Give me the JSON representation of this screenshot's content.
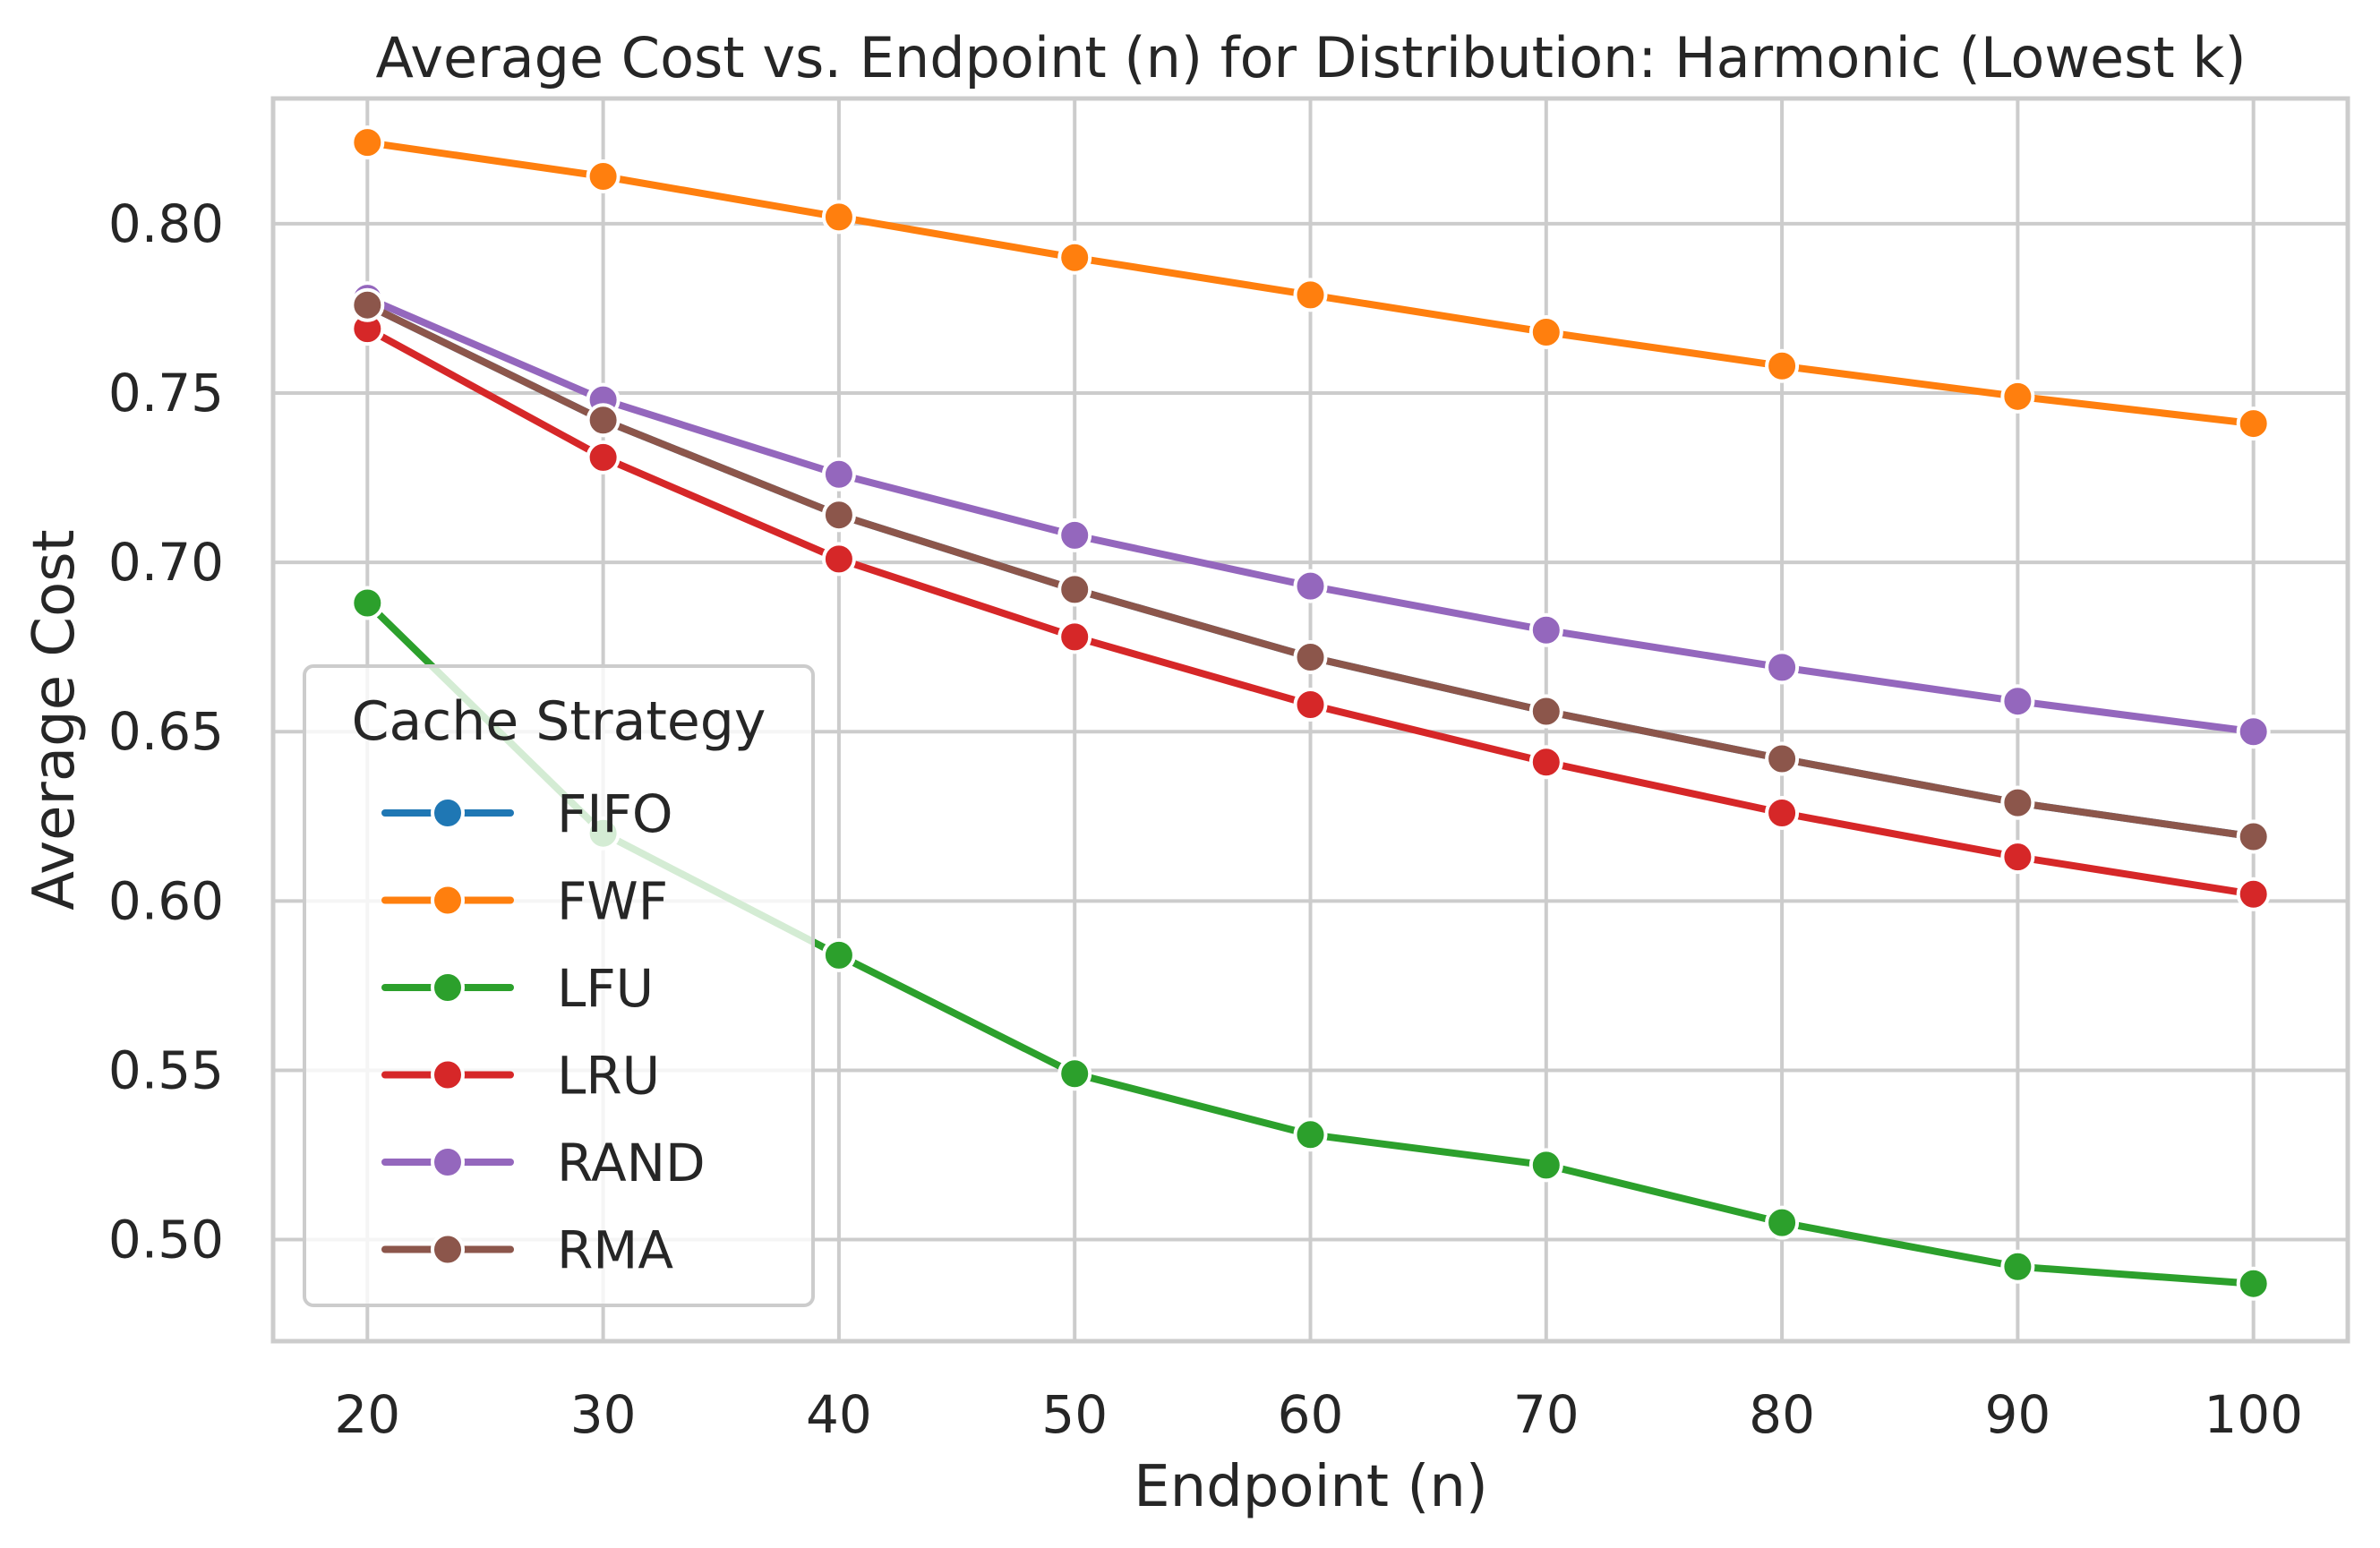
{
  "chart_data": {
    "type": "line",
    "title": "Average Cost vs. Endpoint (n) for Distribution: Harmonic (Lowest k)",
    "xlabel": "Endpoint (n)",
    "ylabel": "Average Cost",
    "x": [
      20,
      30,
      40,
      50,
      60,
      70,
      80,
      90,
      100
    ],
    "x_ticks": [
      "20",
      "30",
      "40",
      "50",
      "60",
      "70",
      "80",
      "90",
      "100"
    ],
    "y_ticks": [
      "0.50",
      "0.55",
      "0.60",
      "0.65",
      "0.70",
      "0.75",
      "0.80"
    ],
    "y_tick_values": [
      0.5,
      0.55,
      0.6,
      0.65,
      0.7,
      0.75,
      0.8
    ],
    "xlim": [
      16,
      104
    ],
    "ylim": [
      0.47,
      0.837
    ],
    "grid": true,
    "legend": {
      "title": "Cache Strategy",
      "placement": "lower-left"
    },
    "series": [
      {
        "name": "FIFO",
        "color": "#1f77b4",
        "values": [
          0.776,
          0.742,
          0.714,
          0.692,
          0.672,
          0.656,
          0.642,
          0.629,
          0.619
        ]
      },
      {
        "name": "FWF",
        "color": "#ff7f0e",
        "values": [
          0.824,
          0.814,
          0.802,
          0.79,
          0.779,
          0.768,
          0.758,
          0.749,
          0.741
        ]
      },
      {
        "name": "LFU",
        "color": "#2ca02c",
        "values": [
          0.688,
          0.62,
          0.584,
          0.549,
          0.531,
          0.522,
          0.505,
          0.492,
          0.487
        ]
      },
      {
        "name": "LRU",
        "color": "#d62728",
        "values": [
          0.769,
          0.731,
          0.701,
          0.678,
          0.658,
          0.641,
          0.626,
          0.613,
          0.602
        ]
      },
      {
        "name": "RAND",
        "color": "#9467bd",
        "values": [
          0.778,
          0.748,
          0.726,
          0.708,
          0.693,
          0.68,
          0.669,
          0.659,
          0.65
        ]
      },
      {
        "name": "RMA",
        "color": "#8c564b",
        "values": [
          0.776,
          0.742,
          0.714,
          0.692,
          0.672,
          0.656,
          0.642,
          0.629,
          0.619
        ]
      }
    ]
  }
}
